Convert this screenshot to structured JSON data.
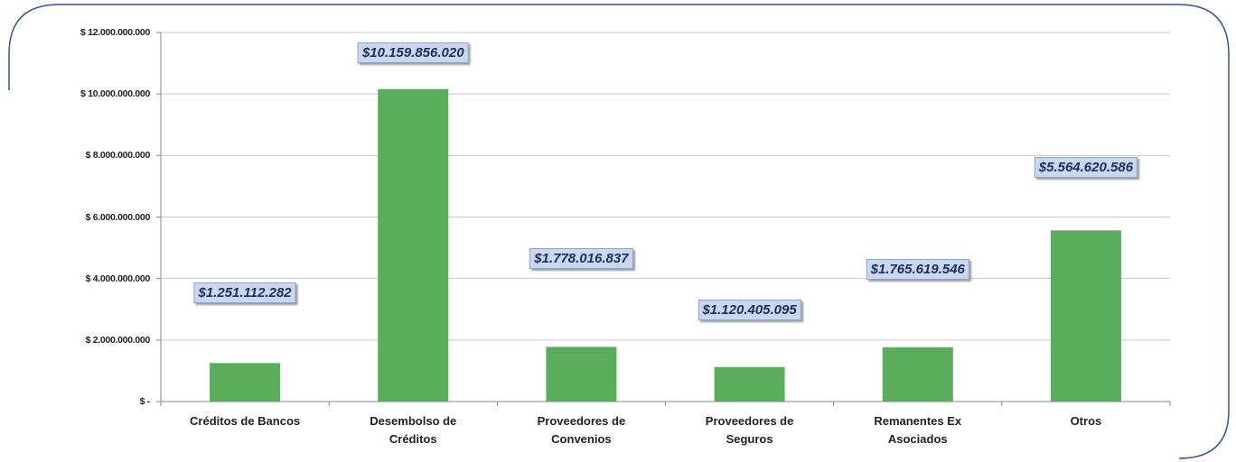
{
  "chart_data": {
    "type": "bar",
    "categories": [
      "Créditos de Bancos",
      "Desembolso de Créditos",
      "Proveedores de Convenios",
      "Proveedores de Seguros",
      "Remanentes Ex Asociados",
      "Otros"
    ],
    "values": [
      1251112282,
      10159856020,
      1778016837,
      1120405095,
      1765619546,
      5564620586
    ],
    "value_labels": [
      "$1.251.112.282",
      "$10.159.856.020",
      "$1.778.016.837",
      "$1.120.405.095",
      "$1.765.619.546",
      "$5.564.620.586"
    ],
    "color": "#5aad5a",
    "ylim": [
      0,
      12000000000
    ],
    "yticks": [
      {
        "value": 0,
        "label": "$ -"
      },
      {
        "value": 2000000000,
        "label": "$ 2.000.000.000"
      },
      {
        "value": 4000000000,
        "label": "$ 4.000.000.000"
      },
      {
        "value": 6000000000,
        "label": "$ 6.000.000.000"
      },
      {
        "value": 8000000000,
        "label": "$ 8.000.000.000"
      },
      {
        "value": 10000000000,
        "label": "$ 10.000.000.000"
      },
      {
        "value": 12000000000,
        "label": "$ 12.000.000.000"
      }
    ],
    "grid": true
  }
}
